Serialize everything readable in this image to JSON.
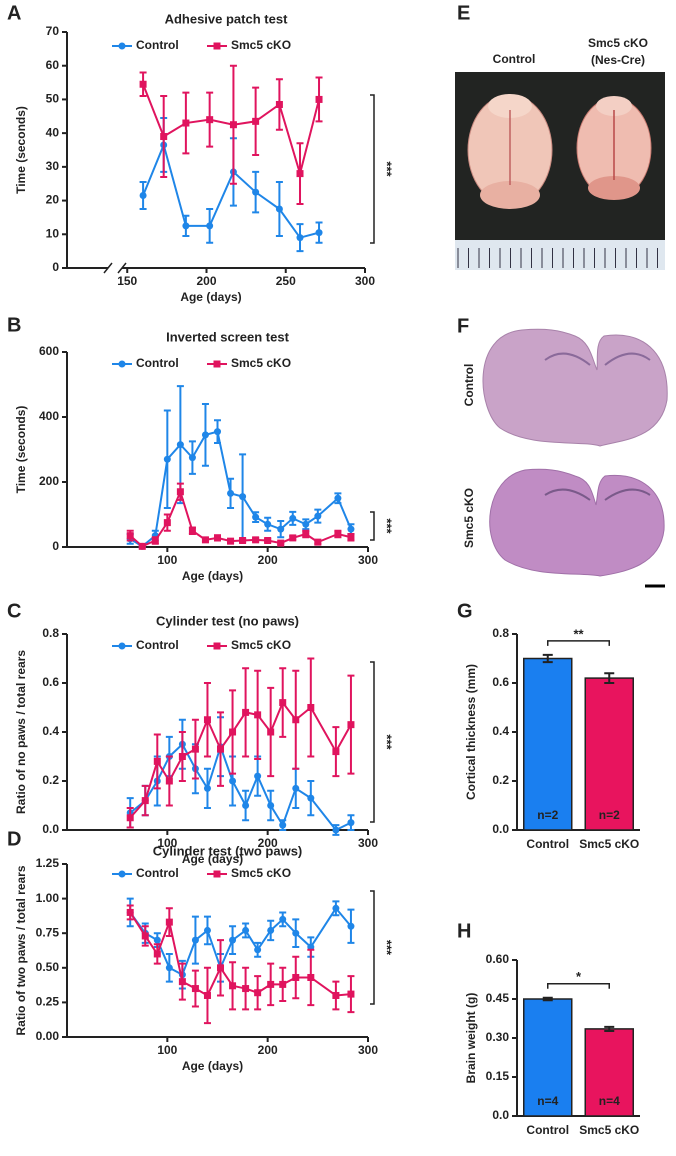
{
  "chart_data": [
    {
      "type": "line",
      "panel": "A",
      "title": "Adhesive patch test",
      "xlabel": "Age (days)",
      "ylabel": "Time (seconds)",
      "xlim": [
        112,
        300
      ],
      "xticks": [
        150,
        200,
        250,
        300
      ],
      "ylim": [
        0,
        70
      ],
      "yticks": [
        0,
        10,
        20,
        30,
        40,
        50,
        60,
        70
      ],
      "annotation": "***",
      "series": [
        {
          "name": "Control",
          "color": "#1f86e8",
          "x": [
            160,
            173,
            187,
            202,
            217,
            231,
            246,
            259,
            271
          ],
          "values": [
            21.5,
            36.5,
            12.5,
            12.5,
            28.5,
            22.5,
            17.5,
            9,
            10.5
          ],
          "errors": [
            4,
            8,
            3,
            5,
            10,
            6,
            8,
            4,
            3
          ]
        },
        {
          "name": "Smc5 cKO",
          "color": "#e0145e",
          "x": [
            160,
            173,
            187,
            202,
            217,
            231,
            246,
            259,
            271
          ],
          "values": [
            54.5,
            39,
            43,
            44,
            42.5,
            43.5,
            48.5,
            28,
            50
          ],
          "errors": [
            3.5,
            12,
            9,
            8,
            17.5,
            10,
            7.5,
            9,
            6.5
          ]
        }
      ]
    },
    {
      "type": "line",
      "panel": "B",
      "title": "Inverted screen test",
      "xlabel": "Age (days)",
      "ylabel": "Time (seconds)",
      "xlim": [
        0,
        300
      ],
      "xticks": [
        100,
        200,
        300
      ],
      "ylim": [
        0,
        600
      ],
      "yticks": [
        0,
        200,
        400,
        600
      ],
      "annotation": "***",
      "series": [
        {
          "name": "Control",
          "color": "#1f86e8",
          "x": [
            63,
            75,
            88,
            100,
            113,
            125,
            138,
            150,
            163,
            175,
            188,
            200,
            213,
            225,
            238,
            250,
            270,
            283
          ],
          "values": [
            25,
            2,
            35,
            270,
            315,
            275,
            345,
            355,
            165,
            155,
            92,
            70,
            55,
            88,
            70,
            95,
            150,
            55
          ],
          "errors": [
            15,
            3,
            15,
            150,
            180,
            50,
            95,
            35,
            45,
            130,
            15,
            20,
            25,
            20,
            15,
            20,
            15,
            15
          ]
        },
        {
          "name": "Smc5 cKO",
          "color": "#e0145e",
          "x": [
            63,
            75,
            88,
            100,
            113,
            125,
            138,
            150,
            163,
            175,
            188,
            200,
            213,
            225,
            238,
            250,
            270,
            283
          ],
          "values": [
            35,
            2,
            20,
            75,
            170,
            50,
            22,
            28,
            18,
            20,
            22,
            20,
            12,
            28,
            40,
            15,
            40,
            30
          ],
          "errors": [
            15,
            2,
            10,
            25,
            25,
            10,
            5,
            8,
            5,
            5,
            5,
            5,
            3,
            5,
            10,
            5,
            10,
            10
          ]
        }
      ]
    },
    {
      "type": "line",
      "panel": "C",
      "title": "Cylinder test (no paws)",
      "xlabel": "Age (days)",
      "ylabel": "Ratio of no paws / total rears",
      "xlim": [
        0,
        300
      ],
      "xticks": [
        100,
        200,
        300
      ],
      "ylim": [
        0,
        0.8
      ],
      "yticks": [
        {
          "value": 0,
          "label": "0.0"
        },
        0.2,
        0.4,
        0.6,
        0.8
      ],
      "annotation": "***",
      "series": [
        {
          "name": "Control",
          "color": "#1f86e8",
          "x": [
            63,
            78,
            90,
            102,
            115,
            128,
            140,
            153,
            165,
            178,
            190,
            203,
            215,
            228,
            243,
            268,
            283
          ],
          "values": [
            0.07,
            0.12,
            0.2,
            0.3,
            0.35,
            0.25,
            0.17,
            0.34,
            0.2,
            0.1,
            0.22,
            0.1,
            0.02,
            0.17,
            0.13,
            0.0,
            0.03
          ],
          "errors": [
            0.06,
            0.06,
            0.1,
            0.08,
            0.1,
            0.1,
            0.08,
            0.12,
            0.1,
            0.06,
            0.08,
            0.06,
            0.02,
            0.08,
            0.07,
            0.02,
            0.03
          ]
        },
        {
          "name": "Smc5 cKO",
          "color": "#e0145e",
          "x": [
            63,
            78,
            90,
            102,
            115,
            128,
            140,
            153,
            165,
            178,
            190,
            203,
            215,
            228,
            243,
            268,
            283
          ],
          "values": [
            0.05,
            0.12,
            0.28,
            0.2,
            0.3,
            0.33,
            0.45,
            0.33,
            0.4,
            0.48,
            0.47,
            0.4,
            0.52,
            0.45,
            0.5,
            0.32,
            0.43
          ],
          "errors": [
            0.04,
            0.06,
            0.11,
            0.1,
            0.1,
            0.12,
            0.15,
            0.15,
            0.17,
            0.18,
            0.18,
            0.18,
            0.14,
            0.2,
            0.2,
            0.1,
            0.2
          ]
        }
      ]
    },
    {
      "type": "line",
      "panel": "D",
      "title": "Cylinder test (two paws)",
      "xlabel": "Age (days)",
      "ylabel": "Ratio of two paws / total rears",
      "xlim": [
        0,
        300
      ],
      "xticks": [
        100,
        200,
        300
      ],
      "ylim": [
        0,
        1.25
      ],
      "yticks": [
        {
          "value": 0,
          "label": "0.00"
        },
        0.25,
        {
          "value": 0.5,
          "label": "0.50"
        },
        0.75,
        {
          "value": 1,
          "label": "1.00"
        },
        1.25
      ],
      "annotation": "***",
      "series": [
        {
          "name": "Control",
          "color": "#1f86e8",
          "x": [
            63,
            78,
            90,
            102,
            115,
            128,
            140,
            153,
            165,
            178,
            190,
            203,
            215,
            228,
            243,
            268,
            283
          ],
          "values": [
            0.9,
            0.75,
            0.7,
            0.5,
            0.45,
            0.7,
            0.77,
            0.5,
            0.7,
            0.77,
            0.63,
            0.77,
            0.85,
            0.75,
            0.65,
            0.93,
            0.8
          ],
          "errors": [
            0.1,
            0.07,
            0.05,
            0.1,
            0.1,
            0.17,
            0.1,
            0.1,
            0.1,
            0.05,
            0.05,
            0.07,
            0.05,
            0.1,
            0.07,
            0.05,
            0.12
          ]
        },
        {
          "name": "Smc5 cKO",
          "color": "#e0145e",
          "x": [
            63,
            78,
            90,
            102,
            115,
            128,
            140,
            153,
            165,
            178,
            190,
            203,
            215,
            228,
            243,
            268,
            283
          ],
          "values": [
            0.9,
            0.73,
            0.6,
            0.83,
            0.4,
            0.35,
            0.3,
            0.5,
            0.37,
            0.35,
            0.32,
            0.38,
            0.38,
            0.43,
            0.43,
            0.3,
            0.31
          ],
          "errors": [
            0.05,
            0.07,
            0.07,
            0.1,
            0.13,
            0.13,
            0.2,
            0.2,
            0.17,
            0.15,
            0.12,
            0.15,
            0.12,
            0.15,
            0.2,
            0.1,
            0.13
          ]
        }
      ]
    },
    {
      "type": "bar",
      "panel": "G",
      "ylabel": "Cortical thickness (mm)",
      "categories": [
        "Control",
        "Smc5 cKO"
      ],
      "values": [
        0.7,
        0.62
      ],
      "errors": [
        0.015,
        0.02
      ],
      "colors": [
        "#1a7ff0",
        "#e8145e"
      ],
      "sample_labels": [
        "n=2",
        "n=2"
      ],
      "annotation": "**",
      "ylim": [
        0,
        0.8
      ],
      "yticks": [
        {
          "value": 0,
          "label": "0.0"
        },
        0.2,
        0.4,
        0.6,
        0.8
      ]
    },
    {
      "type": "bar",
      "panel": "H",
      "ylabel": "Brain weight (g)",
      "categories": [
        "Control",
        "Smc5 cKO"
      ],
      "values": [
        0.45,
        0.335
      ],
      "errors": [
        0.005,
        0.008
      ],
      "colors": [
        "#1a7ff0",
        "#e8145e"
      ],
      "sample_labels": [
        "n=4",
        "n=4"
      ],
      "annotation": "*",
      "ylim": [
        0,
        0.6
      ],
      "yticks": [
        {
          "value": 0,
          "label": "0.0"
        },
        0.15,
        {
          "value": 0.3,
          "label": "0.30"
        },
        0.45,
        {
          "value": 0.6,
          "label": "0.60"
        }
      ]
    }
  ],
  "images": [
    {
      "panel": "E",
      "labels": [
        "Control",
        "Smc5 cKO",
        "(Nes-Cre)"
      ]
    },
    {
      "panel": "F",
      "labels": [
        "Control",
        "Smc5 cKO"
      ]
    }
  ]
}
